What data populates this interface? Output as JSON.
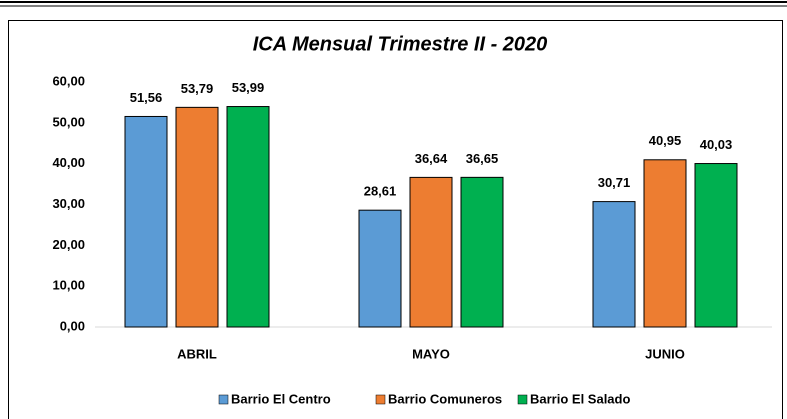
{
  "chart_data": {
    "type": "bar",
    "title": "ICA Mensual Trimestre II - 2020",
    "categories": [
      "ABRIL",
      "MAYO",
      "JUNIO"
    ],
    "series": [
      {
        "name": "Barrio El Centro",
        "color": "#5b9bd5",
        "values": [
          51.56,
          28.61,
          30.71
        ],
        "value_labels": [
          "51,56",
          "28,61",
          "30,71"
        ]
      },
      {
        "name": "Barrio Comuneros",
        "color": "#ed7d31",
        "values": [
          53.79,
          36.64,
          40.95
        ],
        "value_labels": [
          "53,79",
          "36,64",
          "40,95"
        ]
      },
      {
        "name": "Barrio El Salado",
        "color": "#00b050",
        "values": [
          53.99,
          36.65,
          40.03
        ],
        "value_labels": [
          "53,99",
          "36,65",
          "40,03"
        ]
      }
    ],
    "ylim": [
      0,
      60
    ],
    "yticks": [
      {
        "value": 0,
        "label": "0,00"
      },
      {
        "value": 10,
        "label": "10,00"
      },
      {
        "value": 20,
        "label": "20,00"
      },
      {
        "value": 30,
        "label": "30,00"
      },
      {
        "value": 40,
        "label": "40,00"
      },
      {
        "value": 50,
        "label": "50,00"
      },
      {
        "value": 60,
        "label": "60,00"
      }
    ],
    "grid": false,
    "legend": "bottom"
  }
}
